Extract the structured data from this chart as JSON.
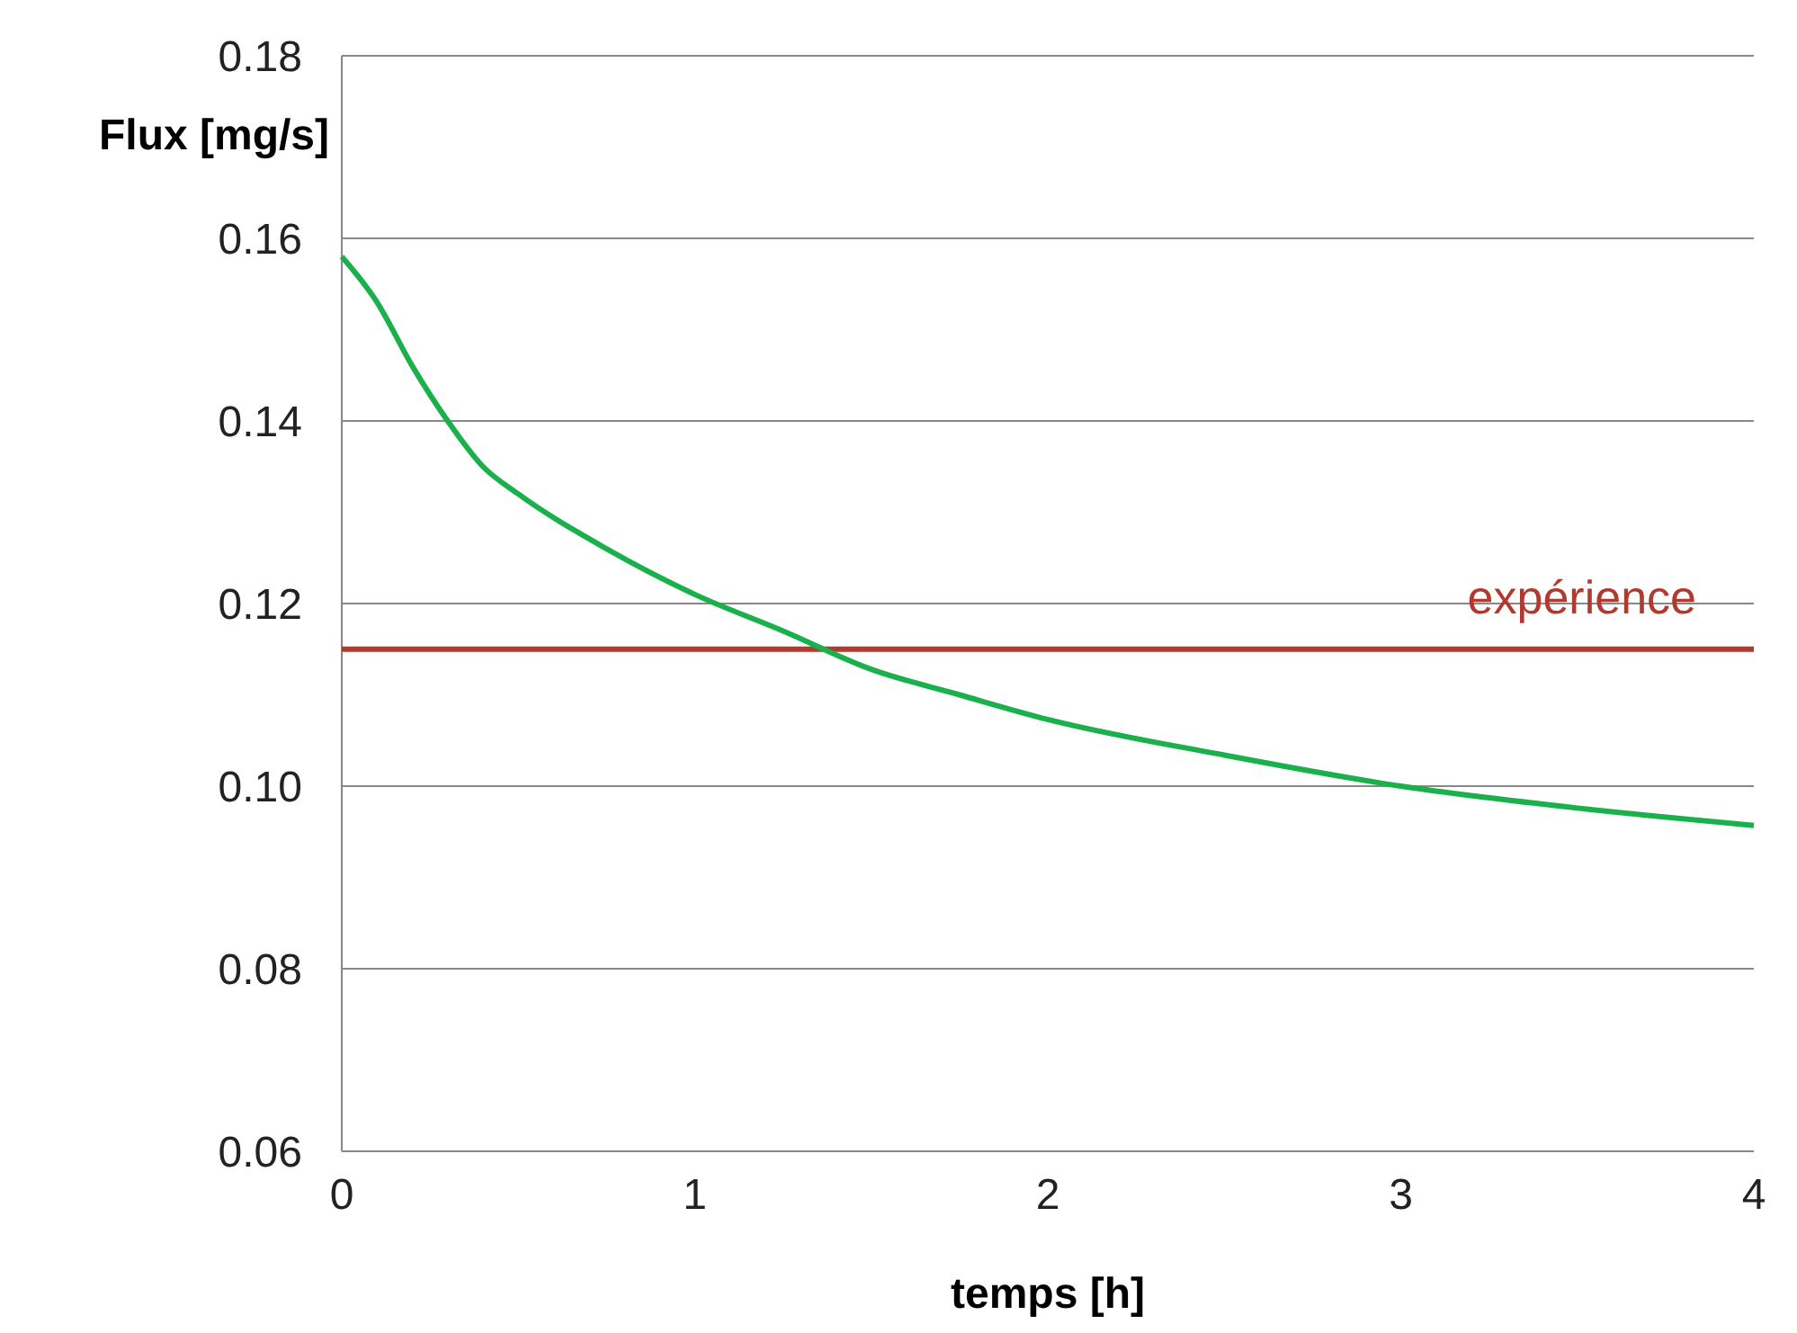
{
  "chart_data": {
    "type": "line",
    "xlabel": "temps [h]",
    "ylabel": "Flux [mg/s]",
    "xlim": [
      0,
      4
    ],
    "xticks": [
      0,
      1,
      2,
      3,
      4
    ],
    "ylim": [
      0.06,
      0.18
    ],
    "yticks": [
      {
        "value": 0.06,
        "label": "0.06"
      },
      {
        "value": 0.08,
        "label": "0.08"
      },
      {
        "value": 0.1,
        "label": "0.10"
      },
      {
        "value": 0.12,
        "label": "0.12"
      },
      {
        "value": 0.14,
        "label": "0.14"
      },
      {
        "value": 0.16,
        "label": "0.16"
      },
      {
        "value": 0.18,
        "label": "0.18"
      }
    ],
    "grid": "y",
    "x": [
      0,
      0.1,
      0.2,
      0.3,
      0.4,
      0.5,
      0.75,
      1,
      1.25,
      1.5,
      1.75,
      2,
      2.5,
      3,
      3.5,
      4
    ],
    "series": [
      {
        "color": "#1ab04c",
        "values": [
          0.158,
          0.153,
          0.146,
          0.14,
          0.135,
          0.132,
          0.126,
          0.121,
          0.117,
          0.1128,
          0.11,
          0.1073,
          0.1034,
          0.1,
          0.0976,
          0.0957
        ]
      }
    ],
    "ref_lines": [
      {
        "axis": "y",
        "value": 0.115,
        "label": "expérience",
        "color": "#b03a2e"
      }
    ]
  }
}
